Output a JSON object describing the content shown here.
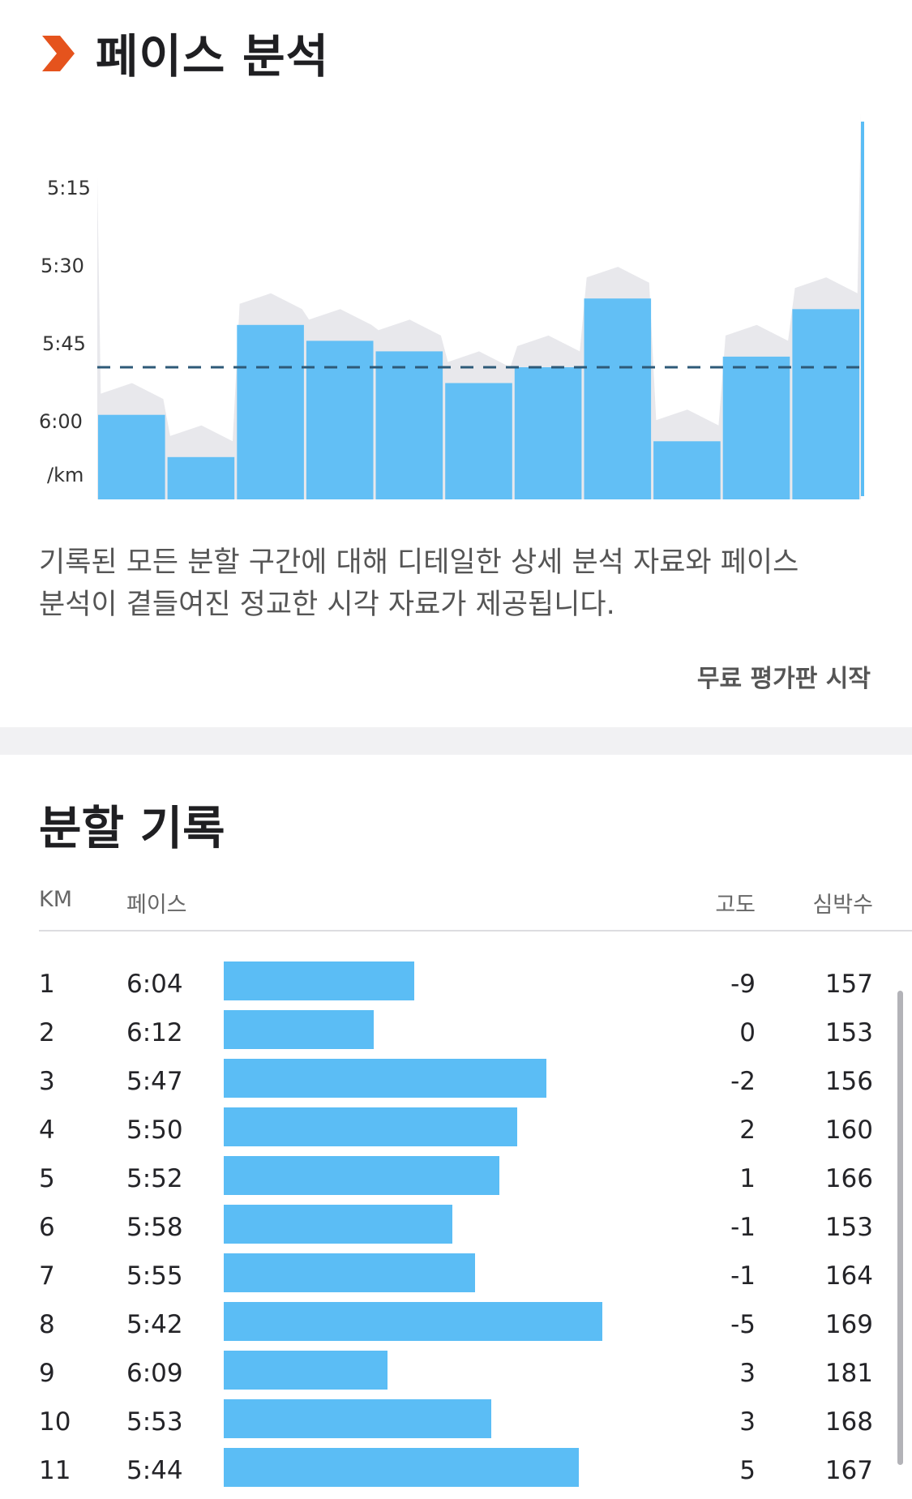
{
  "pace_analysis": {
    "title": "페이스 분석",
    "y_ticks": [
      "5:15",
      "5:30",
      "5:45",
      "6:00"
    ],
    "y_unit": "/km",
    "description_lines": [
      "기록된 모든 분할 구간에 대해 디테일한 상세 분석 자료와 페이스",
      "분석이 곁들여진 정교한 시각 자료가 제공됩니다."
    ],
    "trial_button": "무료 평가판 시작"
  },
  "chart_data": {
    "type": "bar",
    "categories": [
      "1",
      "2",
      "3",
      "4",
      "5",
      "6",
      "7",
      "8",
      "9",
      "10",
      "11"
    ],
    "series": [
      {
        "values": [
          "6:04",
          "6:12",
          "5:47",
          "5:50",
          "5:52",
          "5:58",
          "5:55",
          "5:42",
          "6:09",
          "5:53",
          "5:44"
        ]
      }
    ],
    "values_seconds_per_km": [
      364,
      372,
      347,
      350,
      352,
      358,
      355,
      342,
      369,
      353,
      344
    ],
    "average_seconds_per_km": 355,
    "ylim_seconds": [
      307,
      380
    ],
    "y_ticks_seconds": [
      315,
      330,
      345,
      360
    ],
    "y_inverted": true,
    "grid": false,
    "colors": {
      "bars": "#5bbdf5",
      "background_area": "#e8e8ec",
      "average_line": "#2e5a78"
    }
  },
  "splits": {
    "title": "분할 기록",
    "headers": {
      "km": "KM",
      "pace": "페이스",
      "elevation": "고도",
      "heart_rate": "심박수"
    },
    "max_seconds": 372,
    "min_seconds": 342,
    "rows": [
      {
        "km": "1",
        "pace": "6:04",
        "seconds": 364,
        "elevation": "-9",
        "heart_rate": "157"
      },
      {
        "km": "2",
        "pace": "6:12",
        "seconds": 372,
        "elevation": "0",
        "heart_rate": "153"
      },
      {
        "km": "3",
        "pace": "5:47",
        "seconds": 347,
        "elevation": "-2",
        "heart_rate": "156"
      },
      {
        "km": "4",
        "pace": "5:50",
        "seconds": 350,
        "elevation": "2",
        "heart_rate": "160"
      },
      {
        "km": "5",
        "pace": "5:52",
        "seconds": 352,
        "elevation": "1",
        "heart_rate": "166"
      },
      {
        "km": "6",
        "pace": "5:58",
        "seconds": 358,
        "elevation": "-1",
        "heart_rate": "153"
      },
      {
        "km": "7",
        "pace": "5:55",
        "seconds": 355,
        "elevation": "-1",
        "heart_rate": "164"
      },
      {
        "km": "8",
        "pace": "5:42",
        "seconds": 342,
        "elevation": "-5",
        "heart_rate": "169"
      },
      {
        "km": "9",
        "pace": "6:09",
        "seconds": 369,
        "elevation": "3",
        "heart_rate": "181"
      },
      {
        "km": "10",
        "pace": "5:53",
        "seconds": 353,
        "elevation": "3",
        "heart_rate": "168"
      },
      {
        "km": "11",
        "pace": "5:44",
        "seconds": 344,
        "elevation": "5",
        "heart_rate": "167"
      }
    ]
  },
  "icons": {
    "section_marker": "chevron-right-icon"
  },
  "colors": {
    "accent": "#e5531d",
    "bar": "#5bbdf5"
  }
}
